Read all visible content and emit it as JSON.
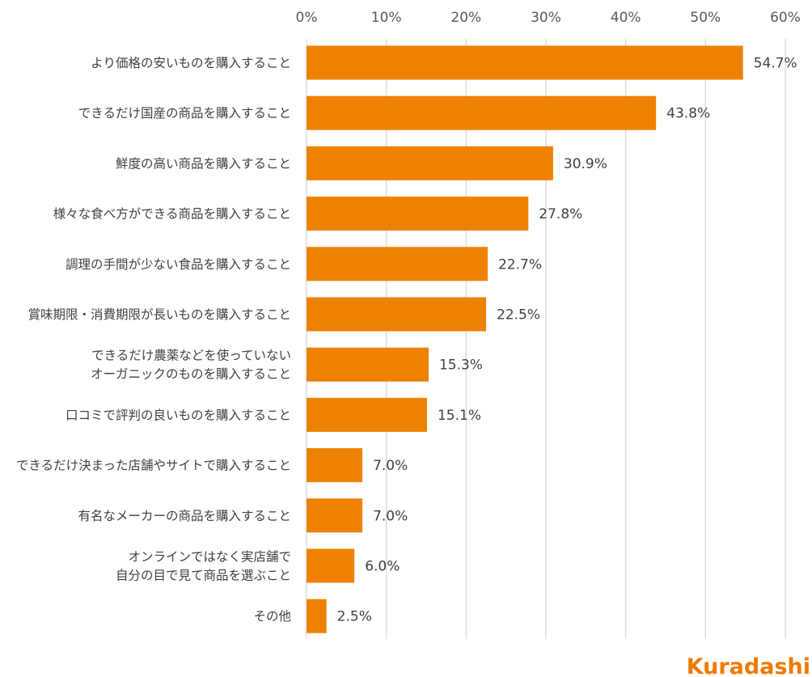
{
  "chart_data": {
    "type": "bar",
    "orientation": "horizontal",
    "categories": [
      [
        "より価格の安いものを購入すること"
      ],
      [
        "できるだけ国産の商品を購入すること"
      ],
      [
        "鮮度の高い商品を購入すること"
      ],
      [
        "様々な食べ方ができる商品を購入すること"
      ],
      [
        "調理の手間が少ない食品を購入すること"
      ],
      [
        "賞味期限・消費期限が長いものを購入すること"
      ],
      [
        "できるだけ農薬などを使っていない",
        "オーガニックのものを購入すること"
      ],
      [
        "口コミで評判の良いものを購入すること"
      ],
      [
        "できるだけ決まった店舗やサイトで購入すること"
      ],
      [
        "有名なメーカーの商品を購入すること"
      ],
      [
        "オンラインではなく実店舗で",
        "自分の目で見て商品を選ぶこと"
      ],
      [
        "その他"
      ]
    ],
    "values": [
      54.7,
      43.8,
      30.9,
      27.8,
      22.7,
      22.5,
      15.3,
      15.1,
      7.0,
      7.0,
      6.0,
      2.5
    ],
    "data_labels": [
      "54.7%",
      "43.8%",
      "30.9%",
      "27.8%",
      "22.7%",
      "22.5%",
      "15.3%",
      "15.1%",
      "7.0%",
      "7.0%",
      "6.0%",
      "2.5%"
    ],
    "x_ticks": [
      0,
      10,
      20,
      30,
      40,
      50,
      60
    ],
    "x_tick_labels": [
      "0%",
      "10%",
      "20%",
      "30%",
      "40%",
      "50%",
      "60%"
    ],
    "xlim": [
      0,
      60
    ],
    "axis_position": "top",
    "grid": true,
    "bar_color": "#ee8100",
    "grid_color": "#d9d9d9",
    "title": "",
    "xlabel": "",
    "ylabel": ""
  },
  "branding": {
    "logo_text": "Kuradashi",
    "color": "#ee7a00"
  }
}
